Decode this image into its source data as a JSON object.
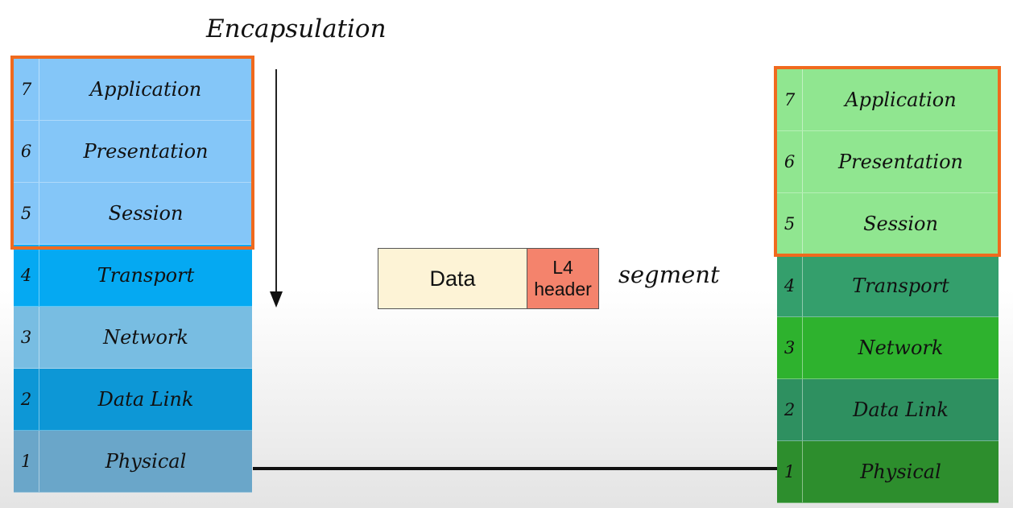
{
  "title": "Encapsulation",
  "left_stack": {
    "layers": [
      {
        "num": "7",
        "name": "Application",
        "color": "#84c6f8"
      },
      {
        "num": "6",
        "name": "Presentation",
        "color": "#84c6f8"
      },
      {
        "num": "5",
        "name": "Session",
        "color": "#84c6f8"
      },
      {
        "num": "4",
        "name": "Transport",
        "color": "#05a9f2"
      },
      {
        "num": "3",
        "name": "Network",
        "color": "#78bde2"
      },
      {
        "num": "2",
        "name": "Data Link",
        "color": "#0d97d6"
      },
      {
        "num": "1",
        "name": "Physical",
        "color": "#6aa6c9"
      }
    ]
  },
  "right_stack": {
    "layers": [
      {
        "num": "7",
        "name": "Application",
        "color": "#90e690"
      },
      {
        "num": "6",
        "name": "Presentation",
        "color": "#90e690"
      },
      {
        "num": "5",
        "name": "Session",
        "color": "#90e690"
      },
      {
        "num": "4",
        "name": "Transport",
        "color": "#349f6c"
      },
      {
        "num": "3",
        "name": "Network",
        "color": "#2eb22e"
      },
      {
        "num": "2",
        "name": "Data Link",
        "color": "#2e9060"
      },
      {
        "num": "1",
        "name": "Physical",
        "color": "#2d8e2d"
      }
    ]
  },
  "highlight_color": "#f06a1e",
  "pdu": {
    "data_label": "Data",
    "header_line1": "L4",
    "header_line2": "header",
    "data_color": "#fdf3d6",
    "header_color": "#f4836c"
  },
  "pdu_name": "segment"
}
